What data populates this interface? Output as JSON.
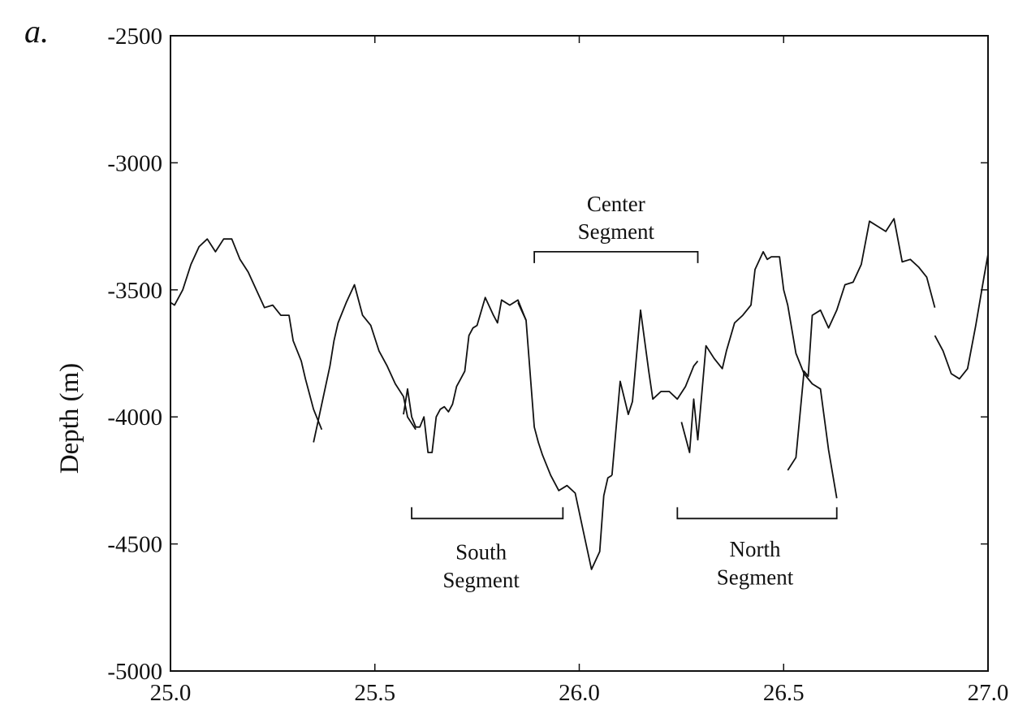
{
  "panel_label": "a.",
  "chart_data": {
    "type": "line",
    "title": "",
    "xlabel": "",
    "ylabel": "Depth (m)",
    "xlim": [
      25.0,
      27.0
    ],
    "ylim": [
      -5000,
      -2500
    ],
    "x_ticks": [
      25.0,
      25.5,
      26.0,
      26.5,
      27.0
    ],
    "x_tick_labels": [
      "25.0",
      "25.5",
      "26.0",
      "26.5",
      "27.0"
    ],
    "y_ticks": [
      -2500,
      -3000,
      -3500,
      -4000,
      -4500,
      -5000
    ],
    "y_tick_labels": [
      "-2500",
      "-3000",
      "-3500",
      "-4000",
      "-4500",
      "-5000"
    ],
    "grid": false,
    "series": [
      {
        "x": [
          25.0,
          25.01,
          25.03,
          25.05,
          25.07,
          25.09,
          25.11,
          25.13,
          25.15,
          25.17,
          25.19,
          25.21,
          25.23,
          25.25,
          25.27,
          25.29,
          25.3,
          25.32,
          25.33,
          25.35,
          25.37
        ],
        "y": [
          -3550,
          -3560,
          -3500,
          -3400,
          -3330,
          -3300,
          -3350,
          -3300,
          -3300,
          -3380,
          -3430,
          -3500,
          -3570,
          -3560,
          -3600,
          -3600,
          -3700,
          -3780,
          -3850,
          -3970,
          -4050
        ]
      },
      {
        "x": [
          25.35,
          25.37,
          25.39,
          25.4,
          25.41,
          25.43,
          25.45,
          25.47,
          25.49,
          25.51,
          25.53,
          25.55,
          25.57,
          25.58,
          25.6
        ],
        "y": [
          -4100,
          -3950,
          -3800,
          -3700,
          -3630,
          -3550,
          -3480,
          -3600,
          -3640,
          -3740,
          -3800,
          -3870,
          -3920,
          -4000,
          -4050
        ]
      },
      {
        "x": [
          25.57,
          25.58,
          25.59,
          25.6,
          25.61,
          25.62,
          25.63,
          25.64,
          25.65,
          25.66,
          25.67,
          25.68,
          25.69,
          25.7,
          25.71,
          25.72,
          25.73,
          25.74,
          25.75,
          25.77,
          25.79,
          25.8,
          25.81,
          25.83,
          25.85,
          25.86,
          25.87
        ],
        "y": [
          -3990,
          -3890,
          -4000,
          -4040,
          -4040,
          -4000,
          -4140,
          -4140,
          -4000,
          -3970,
          -3960,
          -3980,
          -3950,
          -3880,
          -3850,
          -3820,
          -3680,
          -3650,
          -3640,
          -3530,
          -3600,
          -3630,
          -3540,
          -3560,
          -3540,
          -3580,
          -3620
        ]
      },
      {
        "x": [
          25.85,
          25.87,
          25.89,
          25.9,
          25.91,
          25.93,
          25.95,
          25.97,
          25.99,
          26.01,
          26.03,
          26.05,
          26.06,
          26.07,
          26.08
        ],
        "y": [
          -3550,
          -3620,
          -4040,
          -4100,
          -4150,
          -4230,
          -4290,
          -4270,
          -4300,
          -4450,
          -4600,
          -4530,
          -4310,
          -4240,
          -4230
        ]
      },
      {
        "x": [
          26.08,
          26.1,
          26.12,
          26.13,
          26.15,
          26.17,
          26.18,
          26.2,
          26.22,
          26.24,
          26.26,
          26.28,
          26.29
        ],
        "y": [
          -4230,
          -3860,
          -3990,
          -3940,
          -3580,
          -3820,
          -3930,
          -3900,
          -3900,
          -3930,
          -3880,
          -3800,
          -3780
        ]
      },
      {
        "x": [
          26.25,
          26.27,
          26.28,
          26.29,
          26.31,
          26.33,
          26.35,
          26.36,
          26.38,
          26.4,
          26.42,
          26.43,
          26.45,
          26.46,
          26.47,
          26.49,
          26.5,
          26.51,
          26.53,
          26.55,
          26.57,
          26.59,
          26.61,
          26.63
        ],
        "y": [
          -4020,
          -4140,
          -3930,
          -4090,
          -3720,
          -3770,
          -3810,
          -3740,
          -3630,
          -3600,
          -3560,
          -3420,
          -3350,
          -3380,
          -3370,
          -3370,
          -3500,
          -3560,
          -3750,
          -3830,
          -3870,
          -3890,
          -4130,
          -4320
        ]
      },
      {
        "x": [
          26.51,
          26.53,
          26.55,
          26.56,
          26.57,
          26.59,
          26.61,
          26.63,
          26.65,
          26.67,
          26.69,
          26.71,
          26.73,
          26.75,
          26.77,
          26.79,
          26.81,
          26.83,
          26.85,
          26.87
        ],
        "y": [
          -4210,
          -4160,
          -3820,
          -3840,
          -3600,
          -3580,
          -3650,
          -3580,
          -3480,
          -3470,
          -3400,
          -3230,
          -3250,
          -3270,
          -3220,
          -3390,
          -3380,
          -3410,
          -3450,
          -3570
        ]
      },
      {
        "x": [
          26.87,
          26.89,
          26.91,
          26.93,
          26.95,
          26.97,
          26.99,
          27.0
        ],
        "y": [
          -3680,
          -3740,
          -3830,
          -3850,
          -3810,
          -3640,
          -3450,
          -3360
        ]
      }
    ],
    "annotations": [
      {
        "id": "center",
        "lines": [
          "Center",
          "Segment"
        ],
        "bracket_x": [
          25.89,
          26.29
        ],
        "bracket_y": -3350,
        "opens": "down",
        "text_x": 26.09,
        "text_y": [
          -3190,
          -3300
        ]
      },
      {
        "id": "south",
        "lines": [
          "South",
          "Segment"
        ],
        "bracket_x": [
          25.59,
          25.96
        ],
        "bracket_y": -4400,
        "opens": "up",
        "text_x": 25.76,
        "text_y": [
          -4560,
          -4670
        ]
      },
      {
        "id": "north",
        "lines": [
          "North",
          "Segment"
        ],
        "bracket_x": [
          26.24,
          26.63
        ],
        "bracket_y": -4400,
        "opens": "up",
        "text_x": 26.43,
        "text_y": [
          -4550,
          -4660
        ]
      }
    ]
  }
}
